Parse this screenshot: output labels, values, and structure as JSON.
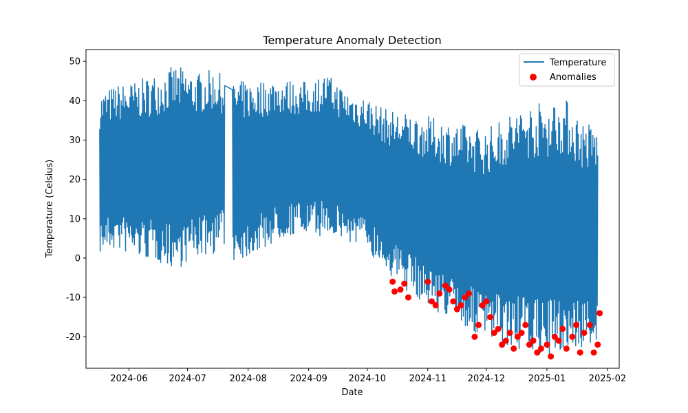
{
  "chart_data": {
    "type": "line",
    "title": "Temperature Anomaly Detection",
    "xlabel": "Date",
    "ylabel": "Temperature (Celsius)",
    "xlim": [
      "2024-05-10",
      "2025-02-07"
    ],
    "ylim": [
      -28,
      53
    ],
    "x_ticks": [
      "2024-06",
      "2024-07",
      "2024-08",
      "2024-09",
      "2024-10",
      "2024-11",
      "2024-12",
      "2025-01",
      "2025-02"
    ],
    "y_ticks": [
      -20,
      -10,
      0,
      10,
      20,
      30,
      40,
      50
    ],
    "grid": false,
    "legend_position": "top-right",
    "colors": {
      "temperature": "#1f77b4",
      "anomalies": "#ff0000"
    },
    "series": [
      {
        "name": "Temperature",
        "type": "line",
        "envelope": {
          "x": [
            "2024-05-17",
            "2024-05-25",
            "2024-06-05",
            "2024-06-15",
            "2024-06-25",
            "2024-07-05",
            "2024-07-15",
            "2024-07-20",
            "2024-07-25",
            "2024-08-05",
            "2024-08-15",
            "2024-08-25",
            "2024-09-01",
            "2024-09-10",
            "2024-09-20",
            "2024-10-01",
            "2024-10-10",
            "2024-10-20",
            "2024-11-01",
            "2024-11-10",
            "2024-11-20",
            "2024-12-01",
            "2024-12-10",
            "2024-12-20",
            "2025-01-01",
            "2025-01-10",
            "2025-01-20",
            "2025-01-27"
          ],
          "high": [
            42,
            44,
            45,
            47,
            49,
            47,
            48,
            46,
            45,
            45,
            46,
            45,
            45,
            47,
            43,
            41,
            38,
            37,
            36,
            35,
            34,
            33,
            36,
            39,
            40,
            41,
            35,
            34
          ],
          "low": [
            1,
            2,
            0,
            -1,
            -3,
            0,
            1,
            3,
            -1,
            1,
            4,
            6,
            5,
            6,
            4,
            2,
            -3,
            -8,
            -12,
            -15,
            -18,
            -21,
            -22,
            -24,
            -25,
            -24,
            -23,
            -22
          ]
        }
      },
      {
        "name": "Anomalies",
        "type": "scatter",
        "x": [
          "2024-10-14",
          "2024-10-15",
          "2024-10-18",
          "2024-10-20",
          "2024-10-22",
          "2024-11-01",
          "2024-11-03",
          "2024-11-05",
          "2024-11-07",
          "2024-11-10",
          "2024-11-12",
          "2024-11-14",
          "2024-11-16",
          "2024-11-18",
          "2024-11-20",
          "2024-11-22",
          "2024-11-25",
          "2024-11-27",
          "2024-11-29",
          "2024-12-01",
          "2024-12-03",
          "2024-12-05",
          "2024-12-07",
          "2024-12-09",
          "2024-12-11",
          "2024-12-13",
          "2024-12-15",
          "2024-12-17",
          "2024-12-19",
          "2024-12-21",
          "2024-12-23",
          "2024-12-25",
          "2024-12-27",
          "2024-12-29",
          "2025-01-01",
          "2025-01-03",
          "2025-01-05",
          "2025-01-07",
          "2025-01-09",
          "2025-01-11",
          "2025-01-14",
          "2025-01-16",
          "2025-01-18",
          "2025-01-20",
          "2025-01-23",
          "2025-01-25",
          "2025-01-27",
          "2025-01-28"
        ],
        "y": [
          -6,
          -8.5,
          -8,
          -6.5,
          -10,
          -6,
          -11,
          -12,
          -9,
          -7,
          -8,
          -11,
          -13,
          -12,
          -10,
          -9,
          -20,
          -17,
          -12,
          -11,
          -15,
          -19,
          -18,
          -22,
          -21,
          -19,
          -23,
          -20,
          -19,
          -17,
          -22,
          -21,
          -24,
          -23,
          -22,
          -25,
          -20,
          -21,
          -18,
          -23,
          -20,
          -17,
          -24,
          -19,
          -17,
          -24,
          -22,
          -14
        ]
      }
    ]
  }
}
